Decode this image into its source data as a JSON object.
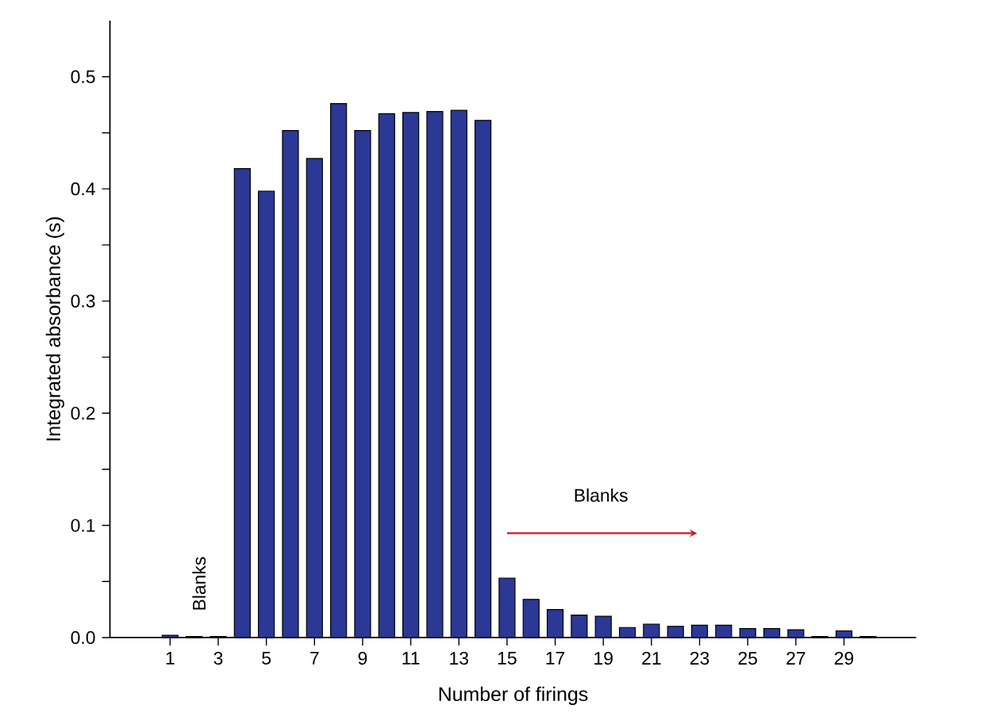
{
  "chart_data": {
    "type": "bar",
    "xlabel": "Number of firings",
    "ylabel": "Integrated absorbance (s)",
    "x": [
      1,
      2,
      3,
      4,
      5,
      6,
      7,
      8,
      9,
      10,
      11,
      12,
      13,
      14,
      15,
      16,
      17,
      18,
      19,
      20,
      21,
      22,
      23,
      24,
      25,
      26,
      27,
      28,
      29,
      30
    ],
    "values": [
      0.002,
      0.001,
      0.001,
      0.418,
      0.398,
      0.452,
      0.427,
      0.476,
      0.452,
      0.467,
      0.468,
      0.469,
      0.47,
      0.461,
      0.053,
      0.034,
      0.025,
      0.02,
      0.019,
      0.009,
      0.012,
      0.01,
      0.011,
      0.011,
      0.008,
      0.008,
      0.007,
      0.001,
      0.006,
      0.001
    ],
    "color": "#2b3896",
    "xlim": [
      -1.5,
      32
    ],
    "xticks": [
      1,
      3,
      5,
      7,
      9,
      11,
      13,
      15,
      17,
      19,
      21,
      23,
      25,
      27,
      29
    ],
    "ylim": [
      0,
      0.55
    ],
    "yticks": [
      {
        "value": 0,
        "label": "0.0"
      },
      {
        "value": 0.05,
        "label": null
      },
      0.1,
      {
        "value": 0.15,
        "label": null
      },
      0.2,
      {
        "value": 0.25,
        "label": null
      },
      0.3,
      {
        "value": 0.35,
        "label": null
      },
      0.4,
      {
        "value": 0.45,
        "label": null
      },
      0.5
    ],
    "annotations": [
      "Blanks",
      "Blanks"
    ]
  }
}
